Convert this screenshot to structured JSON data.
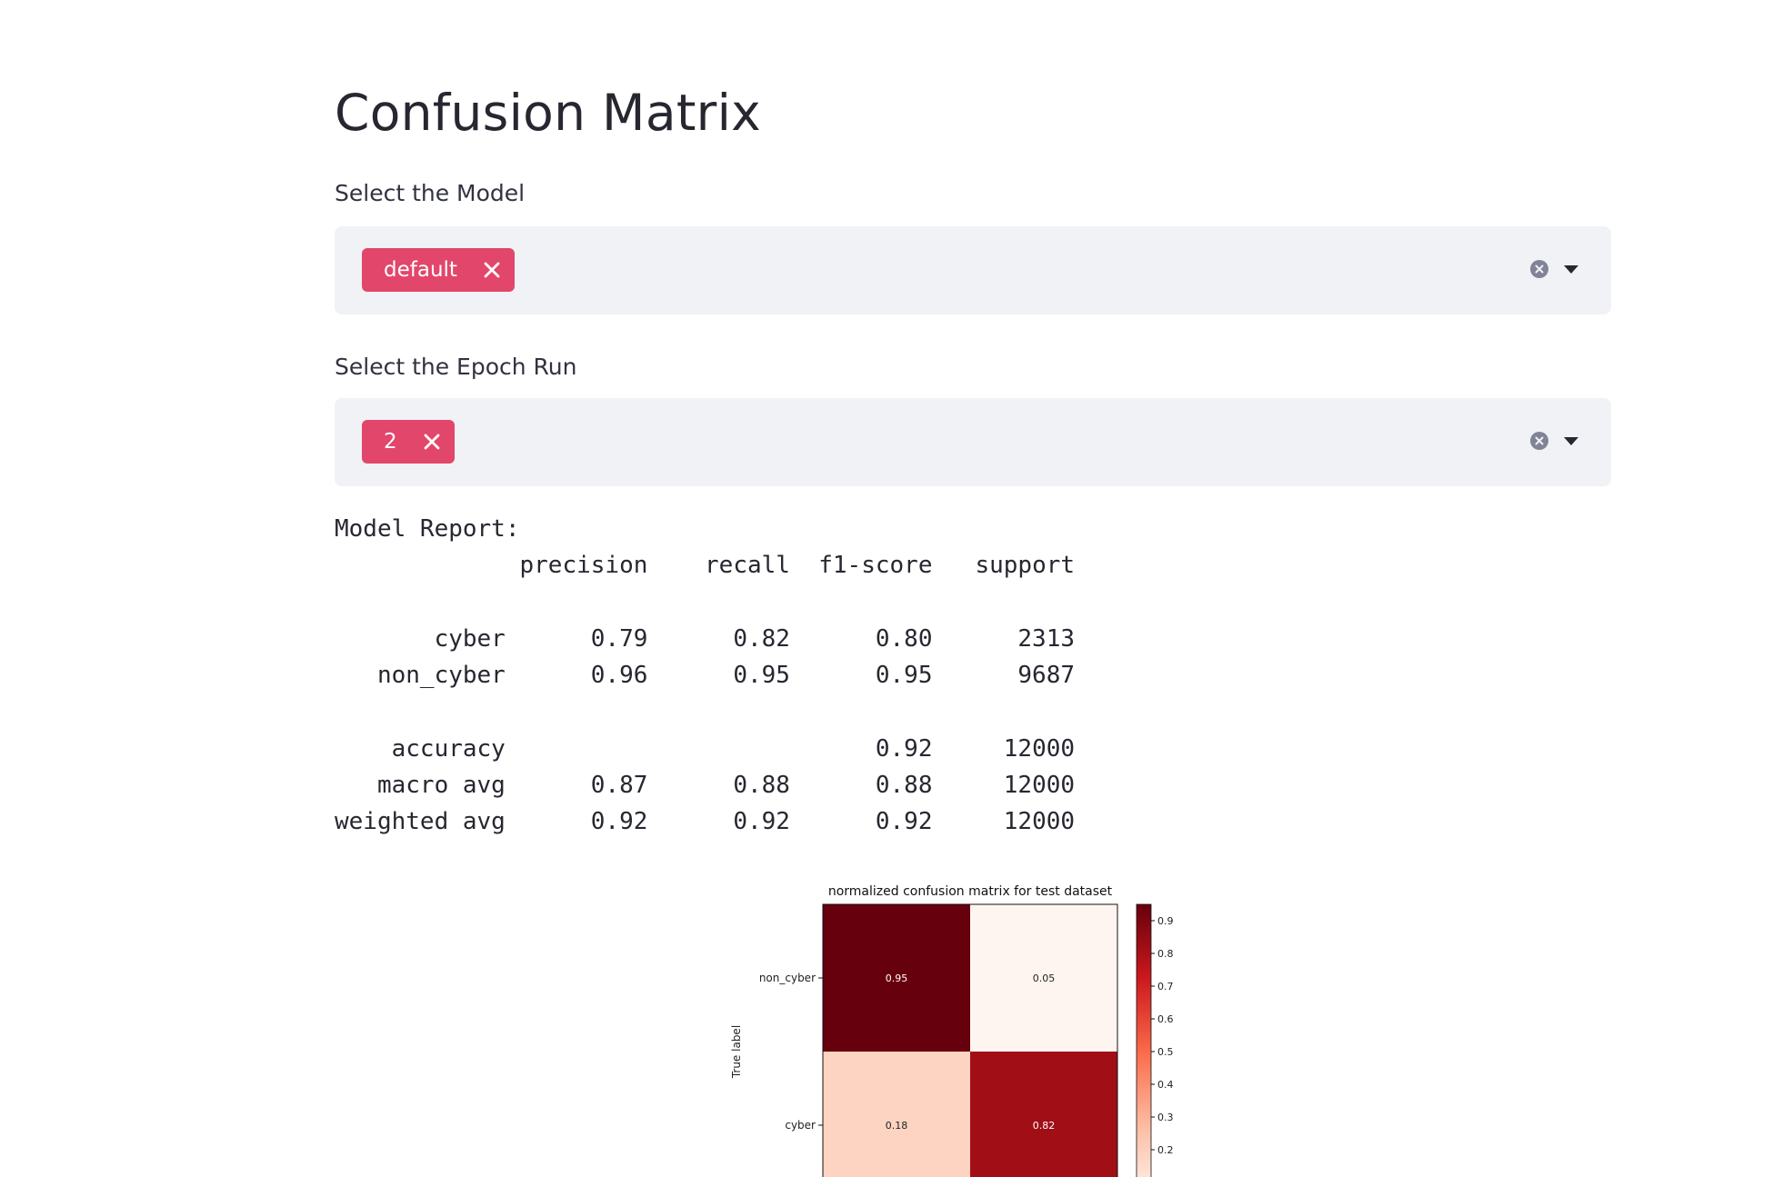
{
  "page": {
    "title": "Confusion Matrix"
  },
  "model_select": {
    "label": "Select the Model",
    "selected": "default"
  },
  "epoch_select": {
    "label": "Select the Epoch Run",
    "selected": "2"
  },
  "report": {
    "heading": "Model Report:",
    "columns": [
      "precision",
      "recall",
      "f1-score",
      "support"
    ],
    "rows": [
      {
        "label": "cyber",
        "precision": "0.79",
        "recall": "0.82",
        "f1": "0.80",
        "support": "2313"
      },
      {
        "label": "non_cyber",
        "precision": "0.96",
        "recall": "0.95",
        "f1": "0.95",
        "support": "9687"
      },
      {
        "label": "accuracy",
        "precision": "",
        "recall": "",
        "f1": "0.92",
        "support": "12000"
      },
      {
        "label": "macro avg",
        "precision": "0.87",
        "recall": "0.88",
        "f1": "0.88",
        "support": "12000"
      },
      {
        "label": "weighted avg",
        "precision": "0.92",
        "recall": "0.92",
        "f1": "0.92",
        "support": "12000"
      }
    ]
  },
  "chart_data": {
    "type": "heatmap",
    "title": "normalized confusion matrix for test dataset",
    "ylabel": "True label",
    "rows": [
      "non_cyber",
      "cyber"
    ],
    "values": [
      [
        0.95,
        0.05
      ],
      [
        0.18,
        0.82
      ]
    ],
    "value_labels": [
      [
        "0.95",
        "0.05"
      ],
      [
        "0.18",
        "0.82"
      ]
    ],
    "colormap": "Reds",
    "colorbar": {
      "range": [
        0.05,
        0.95
      ],
      "ticks": [
        0.9,
        0.8,
        0.7,
        0.6,
        0.5,
        0.4,
        0.3,
        0.2
      ],
      "tick_labels": [
        "0.9",
        "0.8",
        "0.7",
        "0.6",
        "0.5",
        "0.4",
        "0.3",
        "0.2"
      ]
    }
  },
  "colors": {
    "accent": "#e2466b",
    "input_bg": "#f0f2f6"
  }
}
